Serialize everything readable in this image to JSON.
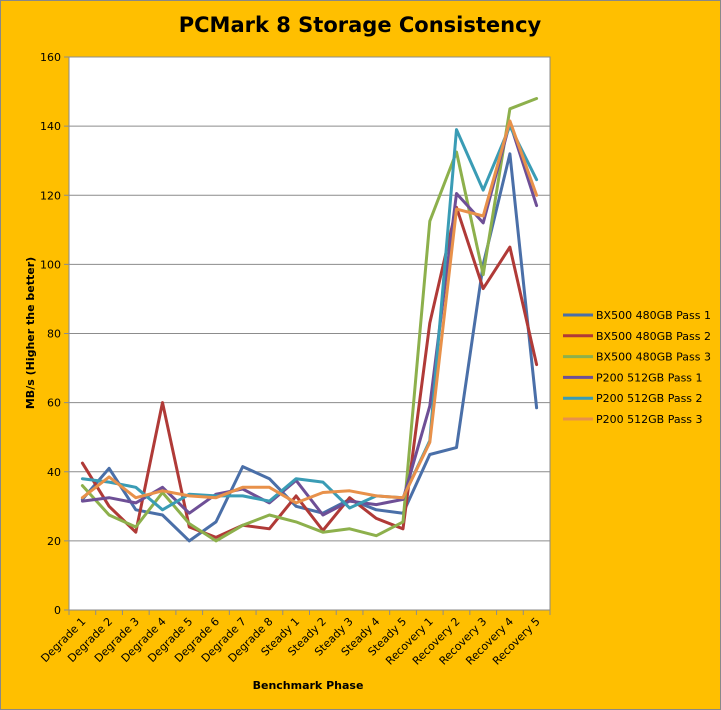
{
  "chart_data": {
    "type": "line",
    "title": "PCMark 8 Storage Consistency",
    "xlabel": "Benchmark Phase",
    "ylabel": "MB/s (Higher the better)",
    "ylim": [
      0,
      160
    ],
    "yticks": [
      0,
      20,
      40,
      60,
      80,
      100,
      120,
      140,
      160
    ],
    "grid": "horizontal",
    "legend_position": "right",
    "background_color": "#ffbf00",
    "plot_background": "#ffffff",
    "categories": [
      "Degrade 1",
      "Degrade 2",
      "Degrade 3",
      "Degrade 4",
      "Degrade 5",
      "Degrade 6",
      "Degrade 7",
      "Degrade 8",
      "Steady 1",
      "Steady 2",
      "Steady 3",
      "Steady 4",
      "Steady 5",
      "Recovery 1",
      "Recovery 2",
      "Recovery 3",
      "Recovery 4",
      "Recovery 5"
    ],
    "series": [
      {
        "name": "BX500 480GB Pass 1",
        "color": "#4a6fa8",
        "values": [
          32,
          41,
          29,
          27.5,
          20,
          25.5,
          41.5,
          38,
          30,
          28,
          32,
          29,
          28,
          45,
          47,
          100,
          132,
          58.5
        ]
      },
      {
        "name": "BX500 480GB Pass 2",
        "color": "#b03a37",
        "values": [
          42.5,
          30,
          22.5,
          60,
          24,
          21,
          24.5,
          23.5,
          33,
          23,
          32.5,
          26.5,
          23.5,
          83,
          116.5,
          93,
          105,
          71
        ]
      },
      {
        "name": "BX500 480GB Pass 3",
        "color": "#8db04c",
        "values": [
          36,
          27.5,
          24,
          34,
          25,
          20,
          24.5,
          27.5,
          25.5,
          22.5,
          23.5,
          21.5,
          25.5,
          112.5,
          132.5,
          97,
          145,
          148
        ]
      },
      {
        "name": "P200 512GB Pass 1",
        "color": "#6e4f96",
        "values": [
          31.5,
          32.5,
          31,
          35.5,
          28,
          33.5,
          35,
          31,
          37.5,
          27.5,
          31.5,
          30.5,
          32,
          59,
          120.5,
          112,
          141,
          117
        ]
      },
      {
        "name": "P200 512GB Pass 2",
        "color": "#3a9cb5",
        "values": [
          38,
          37,
          35.5,
          29,
          33.5,
          33,
          33,
          31.5,
          38,
          37,
          29.5,
          33,
          32.5,
          49,
          139,
          121.5,
          140,
          124.5
        ]
      },
      {
        "name": "P200 512GB Pass 3",
        "color": "#e8914a",
        "values": [
          32.5,
          38.5,
          32.5,
          34.5,
          33,
          32.5,
          35.5,
          35.5,
          31,
          34,
          34.5,
          33,
          32.5,
          48.5,
          116,
          114,
          141.5,
          120
        ]
      }
    ]
  }
}
